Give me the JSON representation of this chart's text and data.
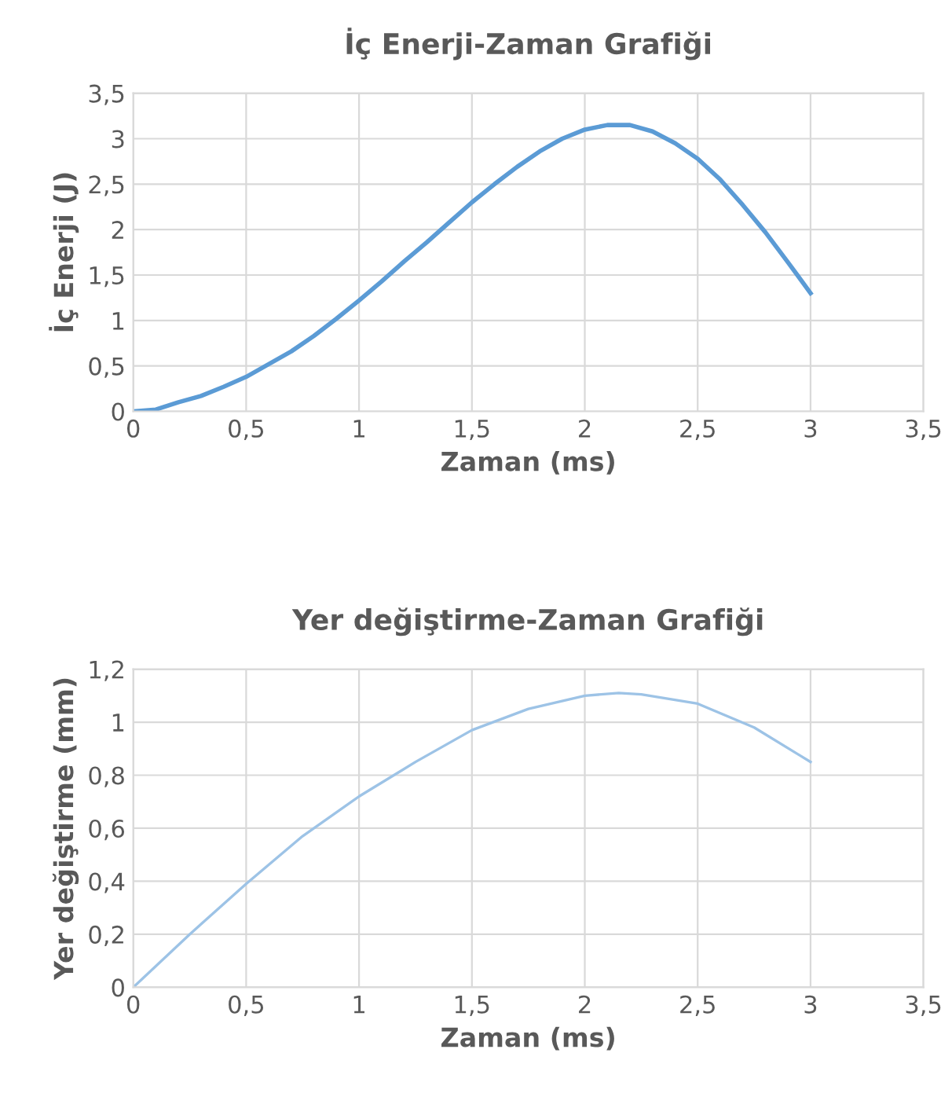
{
  "chart_data": [
    {
      "type": "line",
      "title": "İç Enerji-Zaman Grafiği",
      "xlabel": "Zaman (ms)",
      "ylabel": "İç Enerji (J)",
      "x": [
        0,
        0.1,
        0.2,
        0.3,
        0.4,
        0.5,
        0.6,
        0.7,
        0.8,
        0.9,
        1.0,
        1.1,
        1.2,
        1.3,
        1.4,
        1.5,
        1.6,
        1.7,
        1.8,
        1.9,
        2.0,
        2.1,
        2.2,
        2.3,
        2.4,
        2.5,
        2.6,
        2.7,
        2.8,
        2.9,
        3.0
      ],
      "series": [
        {
          "color": "#5b9bd5",
          "values": [
            0,
            0.02,
            0.1,
            0.17,
            0.27,
            0.38,
            0.52,
            0.66,
            0.83,
            1.02,
            1.22,
            1.43,
            1.65,
            1.86,
            2.08,
            2.3,
            2.5,
            2.69,
            2.86,
            3.0,
            3.1,
            3.15,
            3.15,
            3.08,
            2.95,
            2.78,
            2.55,
            2.27,
            1.97,
            1.64,
            1.3
          ]
        }
      ],
      "xlim": [
        0,
        3.5
      ],
      "ylim": [
        0,
        3.5
      ],
      "xticks": [
        0,
        {
          "value": 0.5,
          "label": "0,5"
        },
        1,
        {
          "value": 1.5,
          "label": "1,5"
        },
        2,
        {
          "value": 2.5,
          "label": "2,5"
        },
        3,
        {
          "value": 3.5,
          "label": "3,5"
        }
      ],
      "yticks": [
        0,
        {
          "value": 0.5,
          "label": "0,5"
        },
        1,
        {
          "value": 1.5,
          "label": "1,5"
        },
        2,
        {
          "value": 2.5,
          "label": "2,5"
        },
        3,
        {
          "value": 3.5,
          "label": "3,5"
        }
      ],
      "grid": true,
      "marker": "none",
      "line_style": "solid"
    },
    {
      "type": "line",
      "title": "Yer değiştirme-Zaman Grafiği",
      "xlabel": "Zaman (ms)",
      "ylabel": "Yer değiştirme (mm)",
      "x": [
        0,
        0.25,
        0.5,
        0.75,
        1.0,
        1.25,
        1.5,
        1.75,
        2.0,
        2.15,
        2.25,
        2.5,
        2.75,
        3.0
      ],
      "series": [
        {
          "color": "#9dc3e6",
          "values": [
            0,
            0.2,
            0.39,
            0.57,
            0.72,
            0.85,
            0.97,
            1.05,
            1.1,
            1.11,
            1.105,
            1.07,
            0.98,
            0.85
          ]
        }
      ],
      "xlim": [
        0,
        3.5
      ],
      "ylim": [
        0,
        1.2
      ],
      "xticks": [
        0,
        {
          "value": 0.5,
          "label": "0,5"
        },
        1,
        {
          "value": 1.5,
          "label": "1,5"
        },
        2,
        {
          "value": 2.5,
          "label": "2,5"
        },
        3,
        {
          "value": 3.5,
          "label": "3,5"
        }
      ],
      "yticks": [
        0,
        {
          "value": 0.2,
          "label": "0,2"
        },
        {
          "value": 0.4,
          "label": "0,4"
        },
        {
          "value": 0.6,
          "label": "0,6"
        },
        {
          "value": 0.8,
          "label": "0,8"
        },
        1,
        {
          "value": 1.2,
          "label": "1,2"
        }
      ],
      "grid": true,
      "marker": "none",
      "line_style": "solid"
    }
  ]
}
